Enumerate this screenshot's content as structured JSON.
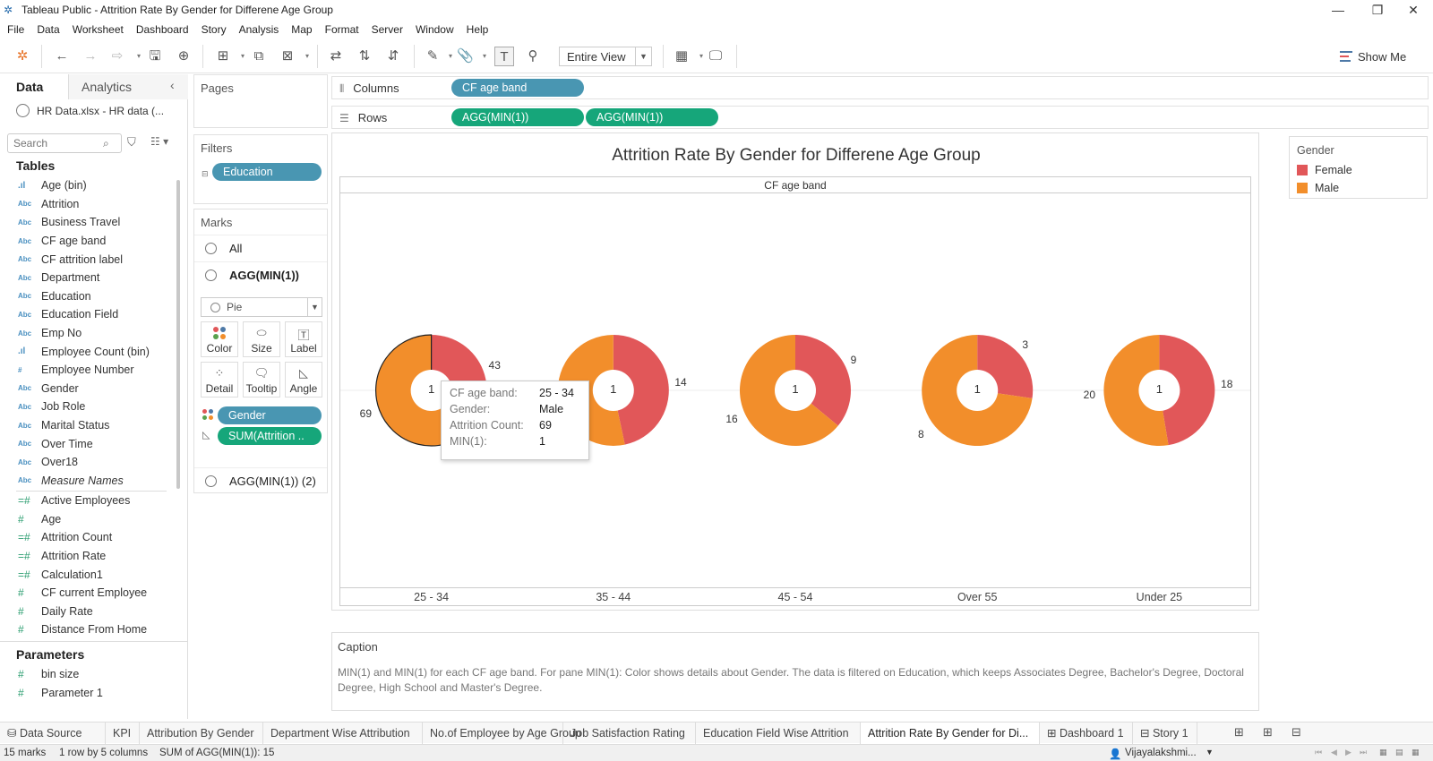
{
  "window": {
    "title": "Tableau Public - Attrition Rate By Gender for Differene Age Group",
    "controls": [
      "—",
      "❐",
      "✕"
    ]
  },
  "menu": [
    "File",
    "Data",
    "Worksheet",
    "Dashboard",
    "Story",
    "Analysis",
    "Map",
    "Format",
    "Server",
    "Window",
    "Help"
  ],
  "toolbar": {
    "fit_value": "Entire View",
    "show_me": "Show Me"
  },
  "left_pane": {
    "tabs": [
      "Data",
      "Analytics"
    ],
    "datasource": "HR Data.xlsx - HR data (...",
    "search_placeholder": "Search",
    "tables_heading": "Tables",
    "dimensions": [
      {
        "type": "bin",
        "name": "Age (bin)"
      },
      {
        "type": "Abc",
        "name": "Attrition"
      },
      {
        "type": "Abc",
        "name": "Business Travel"
      },
      {
        "type": "Abc",
        "name": "CF age band"
      },
      {
        "type": "Abc",
        "name": "CF attrition label"
      },
      {
        "type": "Abc",
        "name": "Department"
      },
      {
        "type": "Abc",
        "name": "Education"
      },
      {
        "type": "Abc",
        "name": "Education Field"
      },
      {
        "type": "Abc",
        "name": "Emp No"
      },
      {
        "type": "bin",
        "name": "Employee Count (bin)"
      },
      {
        "type": "#",
        "name": "Employee Number"
      },
      {
        "type": "Abc",
        "name": "Gender"
      },
      {
        "type": "Abc",
        "name": "Job Role"
      },
      {
        "type": "Abc",
        "name": "Marital Status"
      },
      {
        "type": "Abc",
        "name": "Over Time"
      },
      {
        "type": "Abc",
        "name": "Over18"
      },
      {
        "type": "Abc",
        "name": "Measure Names",
        "italic": true
      }
    ],
    "measures": [
      {
        "type": "=#",
        "name": "Active Employees"
      },
      {
        "type": "#",
        "name": "Age"
      },
      {
        "type": "=#",
        "name": "Attrition Count"
      },
      {
        "type": "=#",
        "name": "Attrition Rate"
      },
      {
        "type": "=#",
        "name": "Calculation1"
      },
      {
        "type": "#",
        "name": "CF current Employee"
      },
      {
        "type": "#",
        "name": "Daily Rate"
      },
      {
        "type": "#",
        "name": "Distance From Home"
      }
    ],
    "parameters_heading": "Parameters",
    "parameters": [
      {
        "type": "#",
        "name": "bin size"
      },
      {
        "type": "#",
        "name": "Parameter 1"
      }
    ]
  },
  "pages_label": "Pages",
  "filters": {
    "label": "Filters",
    "pills": [
      "Education"
    ]
  },
  "marks": {
    "label": "Marks",
    "all": "All",
    "current": "AGG(MIN(1))",
    "mark_type": "Pie",
    "buttons": [
      "Color",
      "Size",
      "Label",
      "Detail",
      "Tooltip",
      "Angle"
    ],
    "pills": [
      "Gender",
      "SUM(Attrition .."
    ],
    "second": "AGG(MIN(1)) (2)"
  },
  "shelves": {
    "columns_label": "Columns",
    "columns": [
      "CF age band"
    ],
    "rows_label": "Rows",
    "rows": [
      "AGG(MIN(1))",
      "AGG(MIN(1))"
    ]
  },
  "chart_data": {
    "type": "pie",
    "title": "Attrition Rate By Gender for Differene Age Group",
    "column_header": "CF age band",
    "categories": [
      "25 - 34",
      "35 - 44",
      "45 - 54",
      "Over 55",
      "Under 25"
    ],
    "series": [
      {
        "name": "Female",
        "values": [
          43,
          14,
          9,
          3,
          18
        ]
      },
      {
        "name": "Male",
        "values": [
          69,
          16,
          16,
          8,
          20
        ]
      }
    ],
    "center_label": "1",
    "colors": {
      "Female": "#E15759",
      "Male": "#F28E2B"
    },
    "legend": {
      "title": "Gender",
      "position": "top-right"
    },
    "selected": {
      "category": "25 - 34",
      "series": "Male"
    }
  },
  "tooltip": {
    "rows": [
      {
        "key": "CF age band:",
        "value": "25 - 34"
      },
      {
        "key": "Gender:",
        "value": "Male"
      },
      {
        "key": "Attrition Count:",
        "value": "69"
      },
      {
        "key": "MIN(1):",
        "value": "1"
      }
    ]
  },
  "caption": {
    "heading": "Caption",
    "text": "MIN(1) and MIN(1) for each CF age band.  For pane MIN(1):  Color shows details about Gender. The data is filtered on Education, which keeps Associates Degree, Bachelor's Degree, Doctoral Degree, High School and Master's Degree."
  },
  "sheet_tabs": [
    {
      "label": "Data Source"
    },
    {
      "label": "KPI"
    },
    {
      "label": "Attribution By Gender"
    },
    {
      "label": "Department Wise Attribution"
    },
    {
      "label": "No.of Employee by Age Group"
    },
    {
      "label": "Job Satisfaction Rating"
    },
    {
      "label": "Education Field Wise Attrition"
    },
    {
      "label": "Attrition Rate By Gender for Di...",
      "active": true
    },
    {
      "label": "Dashboard 1"
    },
    {
      "label": "Story 1"
    }
  ],
  "status": {
    "marks": "15 marks",
    "dims": "1 row by 5 columns",
    "sum": "SUM of AGG(MIN(1)): 15",
    "user": "Vijayalakshmi..."
  }
}
